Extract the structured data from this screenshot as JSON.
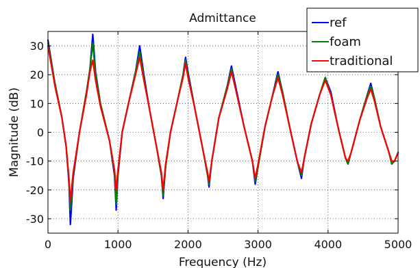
{
  "chart_data": {
    "type": "line",
    "title": "Admittance",
    "xlabel": "Frequency (Hz)",
    "ylabel": "Magnitude (dB)",
    "xlim": [
      0,
      5000
    ],
    "ylim": [
      -35,
      35
    ],
    "xticks": [
      0,
      1000,
      2000,
      3000,
      4000,
      5000
    ],
    "xtick_labels": [
      "0",
      "1000",
      "2000",
      "3000",
      "4000",
      "5000"
    ],
    "yticks": [
      -30,
      -20,
      -10,
      0,
      10,
      20,
      30
    ],
    "ytick_labels": [
      "-30",
      "-20",
      "-10",
      "0",
      "10",
      "20",
      "30"
    ],
    "grid": true,
    "legend_position": "top-right",
    "series": [
      {
        "name": "ref",
        "color": "#0000ff",
        "x": [
          0,
          100,
          200,
          260,
          300,
          320,
          360,
          450,
          550,
          600,
          640,
          680,
          750,
          880,
          950,
          975,
          1000,
          1060,
          1150,
          1250,
          1310,
          1370,
          1450,
          1550,
          1620,
          1645,
          1680,
          1750,
          1850,
          1930,
          1965,
          2000,
          2100,
          2220,
          2280,
          2300,
          2340,
          2440,
          2560,
          2620,
          2680,
          2800,
          2920,
          2960,
          3000,
          3100,
          3200,
          3285,
          3350,
          3450,
          3560,
          3620,
          3660,
          3760,
          3880,
          3960,
          4040,
          4150,
          4250,
          4285,
          4330,
          4450,
          4560,
          4610,
          4660,
          4750,
          4870,
          4910,
          4950,
          5000
        ],
        "y": [
          32,
          17,
          5,
          -5,
          -18,
          -32,
          -16,
          0,
          14,
          22,
          34,
          21,
          10,
          -3,
          -15,
          -27,
          -15,
          0,
          10,
          21,
          30,
          20,
          8,
          -5,
          -15,
          -23,
          -12,
          0,
          11,
          20,
          26,
          21,
          8,
          -7,
          -15,
          -19,
          -10,
          5,
          16,
          23,
          16,
          2,
          -10,
          -18,
          -12,
          2,
          12,
          21,
          14,
          2,
          -10,
          -16,
          -9,
          3,
          13,
          19,
          14,
          1,
          -9,
          -11,
          -7,
          4,
          13,
          17,
          12,
          2,
          -7,
          -11,
          -10,
          -7
        ]
      },
      {
        "name": "foam",
        "color": "#008000",
        "x": [
          0,
          100,
          200,
          260,
          300,
          320,
          360,
          450,
          550,
          600,
          640,
          680,
          750,
          880,
          950,
          975,
          1000,
          1060,
          1150,
          1250,
          1310,
          1370,
          1450,
          1550,
          1620,
          1645,
          1680,
          1750,
          1850,
          1930,
          1965,
          2000,
          2100,
          2220,
          2280,
          2300,
          2340,
          2440,
          2560,
          2620,
          2680,
          2800,
          2920,
          2960,
          3000,
          3100,
          3200,
          3285,
          3350,
          3450,
          3560,
          3620,
          3660,
          3760,
          3880,
          3960,
          4040,
          4150,
          4250,
          4285,
          4330,
          4450,
          4560,
          4610,
          4660,
          4750,
          4870,
          4910,
          4950,
          5000
        ],
        "y": [
          31,
          17,
          5,
          -5,
          -17,
          -27,
          -15,
          0,
          14,
          22,
          31,
          20,
          10,
          -3,
          -14,
          -25,
          -14,
          0,
          10,
          21,
          28,
          19,
          8,
          -5,
          -15,
          -22,
          -12,
          0,
          11,
          20,
          25,
          20,
          8,
          -7,
          -15,
          -18,
          -10,
          5,
          16,
          22,
          15,
          2,
          -10,
          -17,
          -12,
          2,
          12,
          20,
          14,
          2,
          -10,
          -15,
          -9,
          3,
          13,
          19,
          13,
          1,
          -9,
          -11,
          -7,
          4,
          13,
          16,
          12,
          2,
          -7,
          -11,
          -10,
          -7
        ]
      },
      {
        "name": "traditional",
        "color": "#ff0000",
        "x": [
          0,
          100,
          200,
          260,
          300,
          320,
          360,
          450,
          550,
          600,
          640,
          680,
          750,
          880,
          950,
          975,
          1000,
          1060,
          1150,
          1250,
          1310,
          1370,
          1450,
          1550,
          1620,
          1645,
          1680,
          1750,
          1850,
          1930,
          1965,
          2000,
          2100,
          2220,
          2280,
          2300,
          2340,
          2440,
          2560,
          2620,
          2680,
          2800,
          2920,
          2960,
          3000,
          3100,
          3200,
          3285,
          3350,
          3450,
          3560,
          3620,
          3660,
          3760,
          3880,
          3960,
          4040,
          4150,
          4250,
          4285,
          4330,
          4450,
          4560,
          4610,
          4660,
          4750,
          4870,
          4910,
          4950,
          5000
        ],
        "y": [
          30,
          16,
          5,
          -5,
          -16,
          -24,
          -14,
          0,
          13,
          21,
          25,
          18,
          9,
          -3,
          -13,
          -20,
          -13,
          0,
          10,
          20,
          26,
          18,
          8,
          -5,
          -14,
          -20,
          -11,
          0,
          11,
          19,
          24,
          19,
          8,
          -7,
          -14,
          -17,
          -10,
          5,
          15,
          21,
          15,
          2,
          -10,
          -16,
          -11,
          2,
          12,
          19,
          13,
          2,
          -10,
          -14,
          -9,
          3,
          13,
          18,
          13,
          1,
          -9,
          -10,
          -7,
          4,
          12,
          15,
          11,
          2,
          -7,
          -10,
          -10,
          -7
        ]
      }
    ]
  }
}
